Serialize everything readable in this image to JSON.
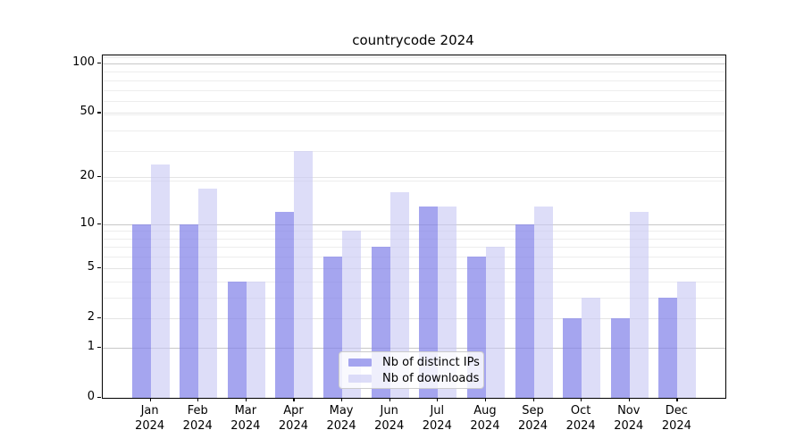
{
  "title": "countrycode 2024",
  "legend": {
    "items": [
      {
        "label": "Nb of distinct IPs"
      },
      {
        "label": "Nb of downloads"
      }
    ]
  },
  "chart_data": {
    "type": "bar",
    "title": "countrycode 2024",
    "categories": [
      {
        "month": "Jan",
        "year": "2024"
      },
      {
        "month": "Feb",
        "year": "2024"
      },
      {
        "month": "Mar",
        "year": "2024"
      },
      {
        "month": "Apr",
        "year": "2024"
      },
      {
        "month": "May",
        "year": "2024"
      },
      {
        "month": "Jun",
        "year": "2024"
      },
      {
        "month": "Jul",
        "year": "2024"
      },
      {
        "month": "Aug",
        "year": "2024"
      },
      {
        "month": "Sep",
        "year": "2024"
      },
      {
        "month": "Oct",
        "year": "2024"
      },
      {
        "month": "Nov",
        "year": "2024"
      },
      {
        "month": "Dec",
        "year": "2024"
      }
    ],
    "series": [
      {
        "name": "Nb of distinct IPs",
        "key": "distinct-ips",
        "color": "rgba(130,130,233,0.72)",
        "values": [
          10,
          10,
          4,
          12,
          6,
          7,
          13,
          6,
          10,
          2,
          2,
          3
        ]
      },
      {
        "name": "Nb of downloads",
        "key": "downloads",
        "color": "rgba(200,200,244,0.62)",
        "values": [
          24,
          17,
          4,
          29,
          9,
          16,
          13,
          7,
          13,
          3,
          12,
          4
        ]
      }
    ],
    "yscale": "log1p",
    "yticks": [
      0,
      1,
      2,
      5,
      10,
      20,
      50,
      100
    ],
    "minor_yticks": [
      3,
      4,
      6,
      7,
      8,
      9,
      19,
      29,
      39,
      49,
      59,
      69,
      79,
      89,
      109
    ],
    "ylim": [
      0,
      112
    ],
    "xlabel": "",
    "ylabel": "",
    "grid": true,
    "legend_position": "lower center"
  }
}
